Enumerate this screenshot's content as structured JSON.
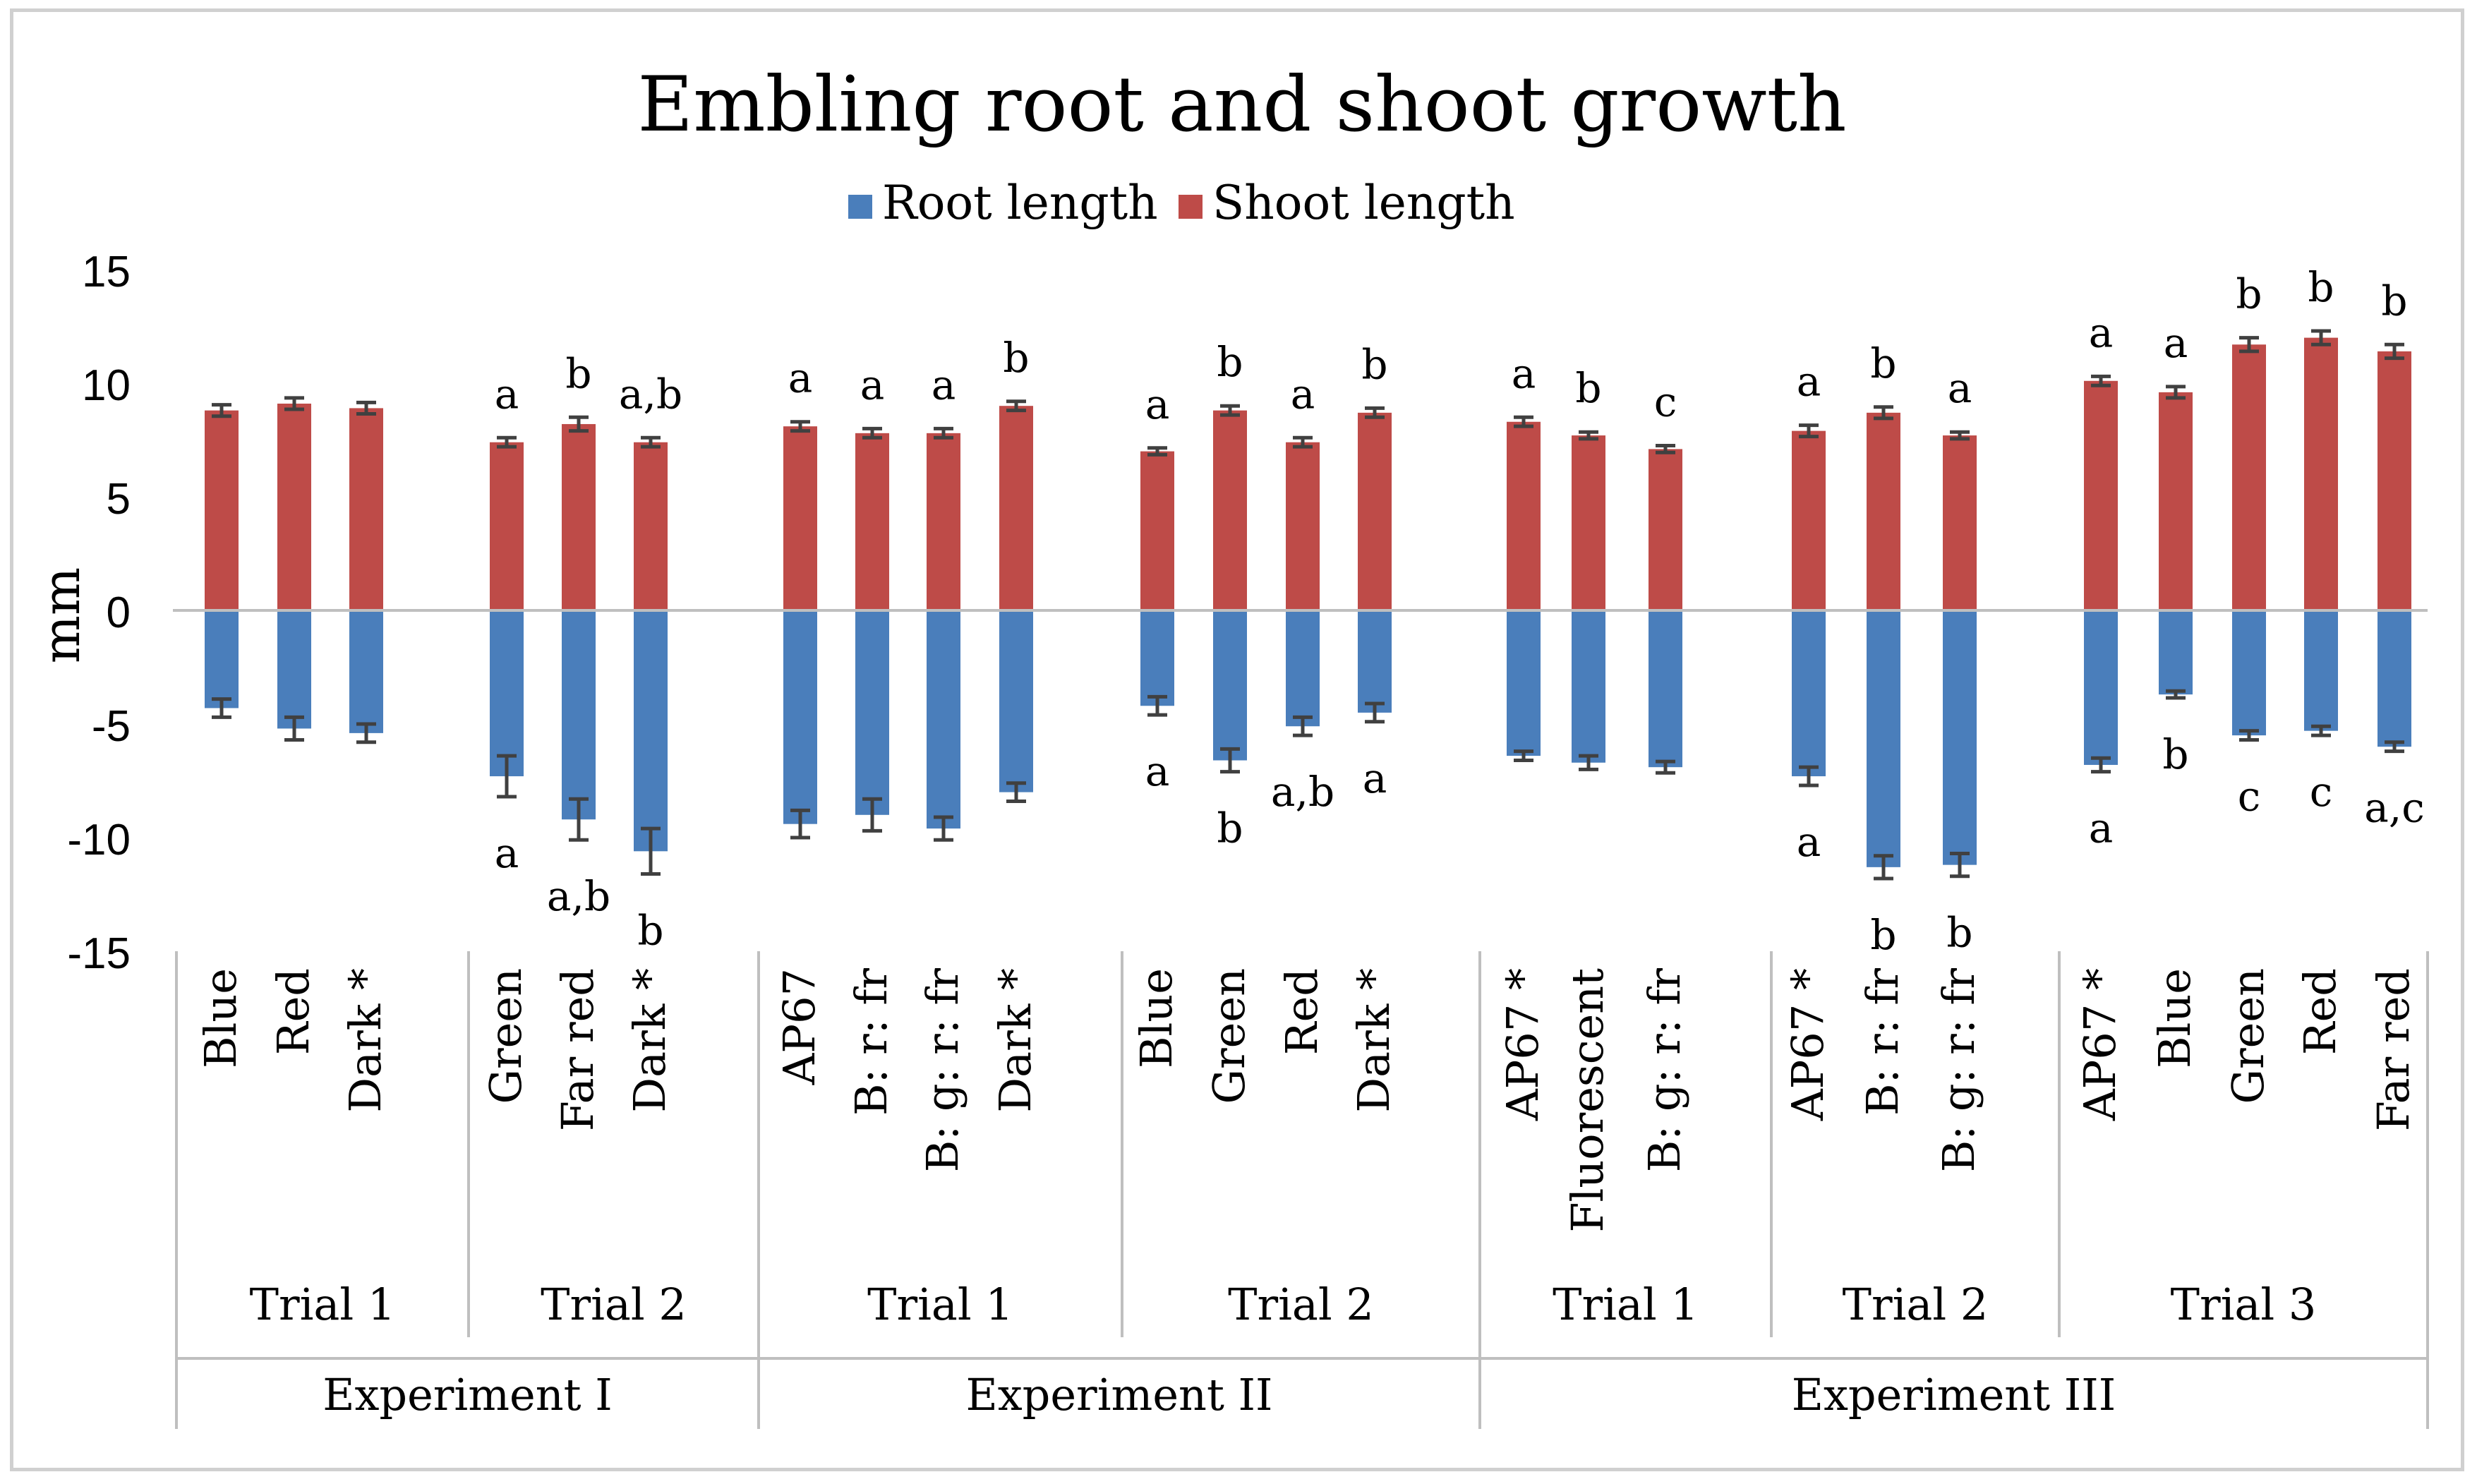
{
  "chart_data": {
    "type": "bar",
    "title": "Embling root and shoot growth",
    "ylabel": "mm",
    "xlabel": "",
    "ylim": [
      -15,
      15
    ],
    "yticks": [
      15,
      10,
      5,
      0,
      -5,
      -10,
      -15
    ],
    "legend": {
      "placement": "top-center",
      "entries": [
        {
          "name": "Root length",
          "color": "#4a7ebb"
        },
        {
          "name": "Shoot length",
          "color": "#be4b48"
        }
      ]
    },
    "colors": {
      "root": "#4a7ebb",
      "shoot": "#be4b48",
      "error": "#404040",
      "axis": "#bfbfbf"
    },
    "groups": [
      {
        "experiment": "Experiment I",
        "trials": [
          {
            "trial": "Trial 1",
            "bars": [
              {
                "label": "Blue",
                "shoot": 8.8,
                "shoot_err": 0.25,
                "root": -4.3,
                "root_err": 0.4,
                "shoot_letter": "",
                "root_letter": ""
              },
              {
                "label": "Red",
                "shoot": 9.1,
                "shoot_err": 0.25,
                "root": -5.2,
                "root_err": 0.5,
                "shoot_letter": "",
                "root_letter": ""
              },
              {
                "label": "Dark *",
                "shoot": 8.9,
                "shoot_err": 0.25,
                "root": -5.4,
                "root_err": 0.4,
                "shoot_letter": "",
                "root_letter": ""
              }
            ]
          },
          {
            "trial": "Trial 2",
            "bars": [
              {
                "label": "Green",
                "shoot": 7.4,
                "shoot_err": 0.2,
                "root": -7.3,
                "root_err": 0.9,
                "shoot_letter": "a",
                "root_letter": "a"
              },
              {
                "label": "Far red",
                "shoot": 8.2,
                "shoot_err": 0.3,
                "root": -9.2,
                "root_err": 0.9,
                "shoot_letter": "b",
                "root_letter": "a,b"
              },
              {
                "label": "Dark *",
                "shoot": 7.4,
                "shoot_err": 0.2,
                "root": -10.6,
                "root_err": 1.0,
                "shoot_letter": "a,b",
                "root_letter": "b"
              }
            ]
          }
        ]
      },
      {
        "experiment": "Experiment II",
        "trials": [
          {
            "trial": "Trial 1",
            "bars": [
              {
                "label": "AP67",
                "shoot": 8.1,
                "shoot_err": 0.2,
                "root": -9.4,
                "root_err": 0.6,
                "shoot_letter": "a",
                "root_letter": ""
              },
              {
                "label": "B: r: fr",
                "shoot": 7.8,
                "shoot_err": 0.2,
                "root": -9.0,
                "root_err": 0.7,
                "shoot_letter": "a",
                "root_letter": ""
              },
              {
                "label": "B: g: r: fr",
                "shoot": 7.8,
                "shoot_err": 0.2,
                "root": -9.6,
                "root_err": 0.5,
                "shoot_letter": "a",
                "root_letter": ""
              },
              {
                "label": "Dark *",
                "shoot": 9.0,
                "shoot_err": 0.2,
                "root": -8.0,
                "root_err": 0.4,
                "shoot_letter": "b",
                "root_letter": ""
              }
            ]
          },
          {
            "trial": "Trial 2",
            "bars": [
              {
                "label": "Blue",
                "shoot": 7.0,
                "shoot_err": 0.15,
                "root": -4.2,
                "root_err": 0.4,
                "shoot_letter": "a",
                "root_letter": "a"
              },
              {
                "label": "Green",
                "shoot": 8.8,
                "shoot_err": 0.2,
                "root": -6.6,
                "root_err": 0.5,
                "shoot_letter": "b",
                "root_letter": "b"
              },
              {
                "label": "Red",
                "shoot": 7.4,
                "shoot_err": 0.2,
                "root": -5.1,
                "root_err": 0.4,
                "shoot_letter": "a",
                "root_letter": "a,b"
              },
              {
                "label": "Dark *",
                "shoot": 8.7,
                "shoot_err": 0.2,
                "root": -4.5,
                "root_err": 0.4,
                "shoot_letter": "b",
                "root_letter": "a"
              }
            ]
          }
        ]
      },
      {
        "experiment": "Experiment III",
        "trials": [
          {
            "trial": "Trial 1",
            "bars": [
              {
                "label": "AP67 *",
                "shoot": 8.3,
                "shoot_err": 0.2,
                "root": -6.4,
                "root_err": 0.2,
                "shoot_letter": "a",
                "root_letter": ""
              },
              {
                "label": "Fluorescent",
                "shoot": 7.7,
                "shoot_err": 0.15,
                "root": -6.7,
                "root_err": 0.3,
                "shoot_letter": "b",
                "root_letter": ""
              },
              {
                "label": "B: g: r: fr",
                "shoot": 7.1,
                "shoot_err": 0.15,
                "root": -6.9,
                "root_err": 0.25,
                "shoot_letter": "c",
                "root_letter": ""
              }
            ]
          },
          {
            "trial": "Trial 2",
            "bars": [
              {
                "label": "AP67 *",
                "shoot": 7.9,
                "shoot_err": 0.25,
                "root": -7.3,
                "root_err": 0.4,
                "shoot_letter": "a",
                "root_letter": "a"
              },
              {
                "label": "B: r: fr",
                "shoot": 8.7,
                "shoot_err": 0.25,
                "root": -11.3,
                "root_err": 0.5,
                "shoot_letter": "b",
                "root_letter": "b"
              },
              {
                "label": "B: g: r: fr",
                "shoot": 7.7,
                "shoot_err": 0.15,
                "root": -11.2,
                "root_err": 0.5,
                "shoot_letter": "a",
                "root_letter": "b"
              }
            ]
          },
          {
            "trial": "Trial 3",
            "bars": [
              {
                "label": "AP67 *",
                "shoot": 10.1,
                "shoot_err": 0.2,
                "root": -6.8,
                "root_err": 0.3,
                "shoot_letter": "a",
                "root_letter": "a"
              },
              {
                "label": "Blue",
                "shoot": 9.6,
                "shoot_err": 0.25,
                "root": -3.7,
                "root_err": 0.15,
                "shoot_letter": "a",
                "root_letter": "b"
              },
              {
                "label": "Green",
                "shoot": 11.7,
                "shoot_err": 0.3,
                "root": -5.5,
                "root_err": 0.2,
                "shoot_letter": "b",
                "root_letter": "c"
              },
              {
                "label": "Red",
                "shoot": 12.0,
                "shoot_err": 0.3,
                "root": -5.3,
                "root_err": 0.2,
                "shoot_letter": "b",
                "root_letter": "c"
              },
              {
                "label": "Far red",
                "shoot": 11.4,
                "shoot_err": 0.3,
                "root": -6.0,
                "root_err": 0.2,
                "shoot_letter": "b",
                "root_letter": "a,c"
              }
            ]
          }
        ]
      }
    ]
  }
}
